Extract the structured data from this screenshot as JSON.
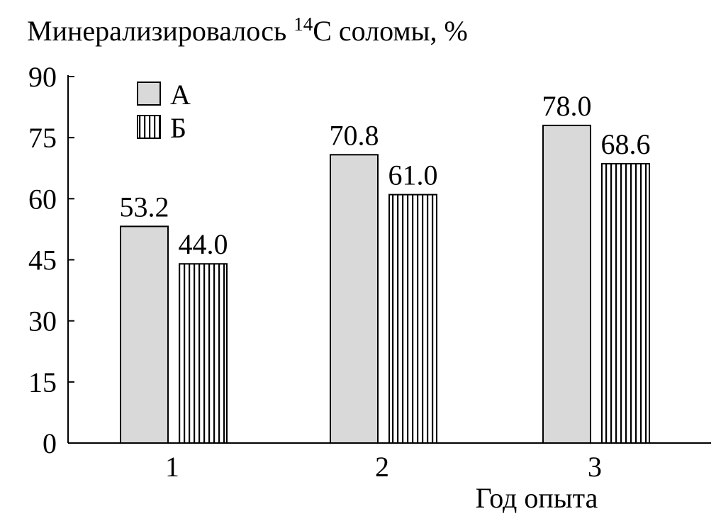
{
  "chart_data": {
    "type": "bar",
    "title": "Минерализировалось ¹⁴C соломы, %",
    "title_parts": {
      "before": "Минерализировалось ",
      "sup": "14",
      "after": "C соломы, %"
    },
    "xlabel": "Год опыта",
    "ylabel": "",
    "categories": [
      "1",
      "2",
      "3"
    ],
    "ylim": [
      0,
      90
    ],
    "yticks": [
      0,
      15,
      30,
      45,
      60,
      75,
      90
    ],
    "grid": false,
    "legend_placement": "top-left",
    "series": [
      {
        "name": "А",
        "values": [
          53.2,
          70.8,
          78.0
        ],
        "labels": [
          "53.2",
          "70.8",
          "78.0"
        ],
        "fill": "#d9d9d9",
        "pattern": "solid"
      },
      {
        "name": "Б",
        "values": [
          44.0,
          61.0,
          68.6
        ],
        "labels": [
          "44.0",
          "61.0",
          "68.6"
        ],
        "fill": "#ffffff",
        "pattern": "vertical-stripes"
      }
    ]
  }
}
